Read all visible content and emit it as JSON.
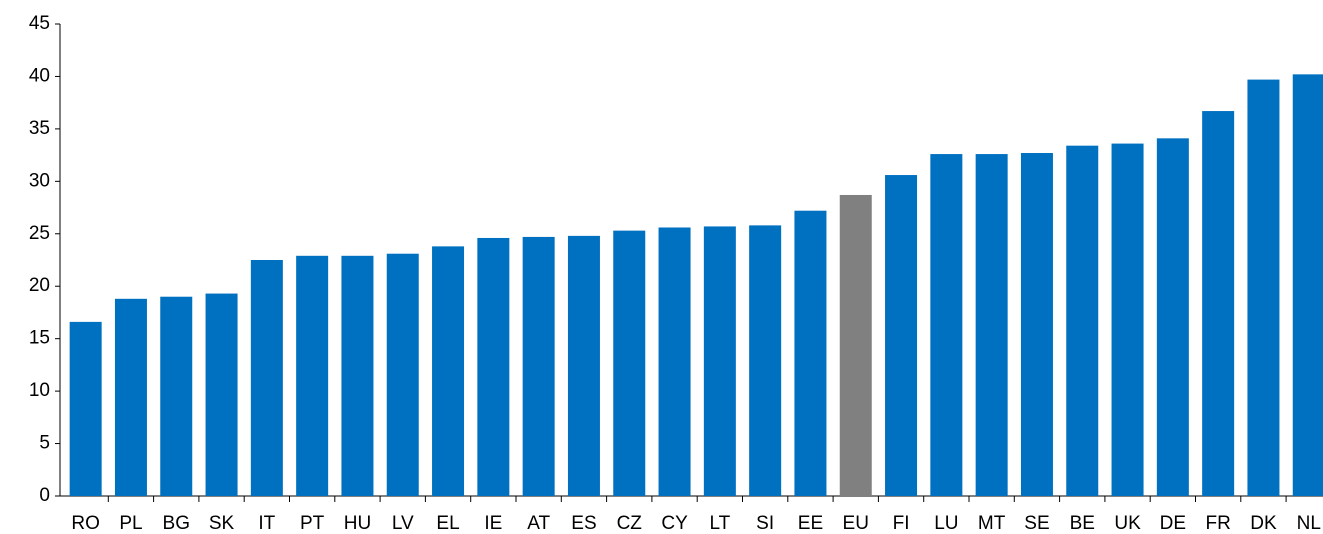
{
  "chart_data": {
    "type": "bar",
    "categories": [
      "RO",
      "PL",
      "BG",
      "SK",
      "IT",
      "PT",
      "HU",
      "LV",
      "EL",
      "IE",
      "AT",
      "ES",
      "CZ",
      "CY",
      "LT",
      "SI",
      "EE",
      "EU",
      "FI",
      "LU",
      "MT",
      "SE",
      "BE",
      "UK",
      "DE",
      "FR",
      "DK",
      "NL"
    ],
    "values": [
      16.6,
      18.8,
      19.0,
      19.3,
      22.5,
      22.9,
      22.9,
      23.1,
      23.8,
      24.6,
      24.7,
      24.8,
      25.3,
      25.6,
      25.7,
      25.8,
      27.2,
      28.7,
      30.6,
      32.6,
      32.6,
      32.7,
      33.4,
      33.6,
      34.1,
      36.7,
      39.7,
      40.2
    ],
    "colors": [
      "#0070c0",
      "#0070c0",
      "#0070c0",
      "#0070c0",
      "#0070c0",
      "#0070c0",
      "#0070c0",
      "#0070c0",
      "#0070c0",
      "#0070c0",
      "#0070c0",
      "#0070c0",
      "#0070c0",
      "#0070c0",
      "#0070c0",
      "#0070c0",
      "#0070c0",
      "#808080",
      "#0070c0",
      "#0070c0",
      "#0070c0",
      "#0070c0",
      "#0070c0",
      "#0070c0",
      "#0070c0",
      "#0070c0",
      "#0070c0",
      "#0070c0"
    ],
    "ylim": [
      0,
      45
    ],
    "yticks": [
      0,
      5,
      10,
      15,
      20,
      25,
      30,
      35,
      40,
      45
    ],
    "grid": false
  }
}
